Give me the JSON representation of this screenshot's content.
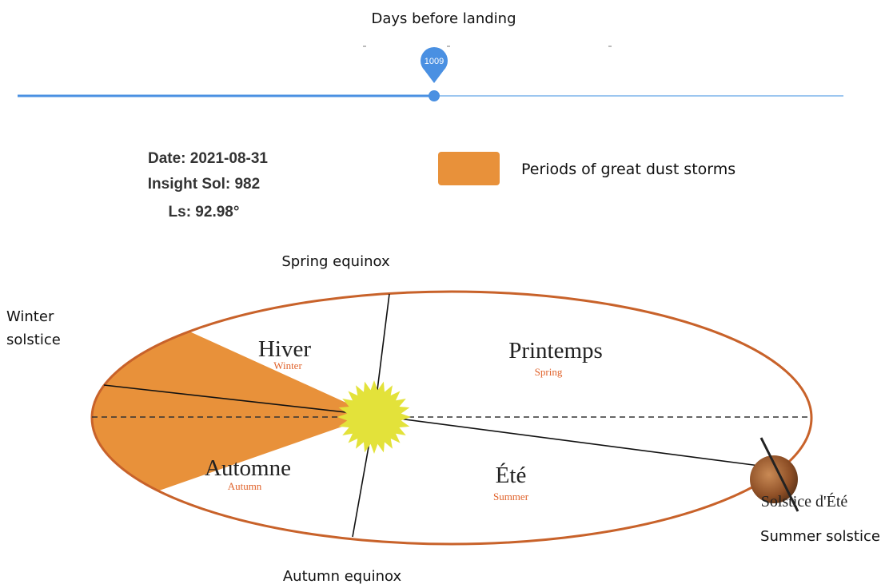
{
  "slider": {
    "title": "Days before landing",
    "value_label": "1009"
  },
  "info": {
    "date": "Date: 2021-08-31",
    "sol": "Insight Sol: 982",
    "ls": "Ls: 92.98°"
  },
  "legend": {
    "label": "Periods of great dust storms"
  },
  "diagram": {
    "spring_equinox": "Spring equinox",
    "winter_solstice": "Winter solstice",
    "autumn_equinox": "Autumn equinox",
    "summer_solstice": "Summer solstice",
    "summer_solstice_fr": "Solstice d'Été",
    "seasons": [
      {
        "fr": "Hiver",
        "en": "Winter"
      },
      {
        "fr": "Printemps",
        "en": "Spring"
      },
      {
        "fr": "Automne",
        "en": "Autumn"
      },
      {
        "fr": "Été",
        "en": "Summer"
      }
    ]
  }
}
